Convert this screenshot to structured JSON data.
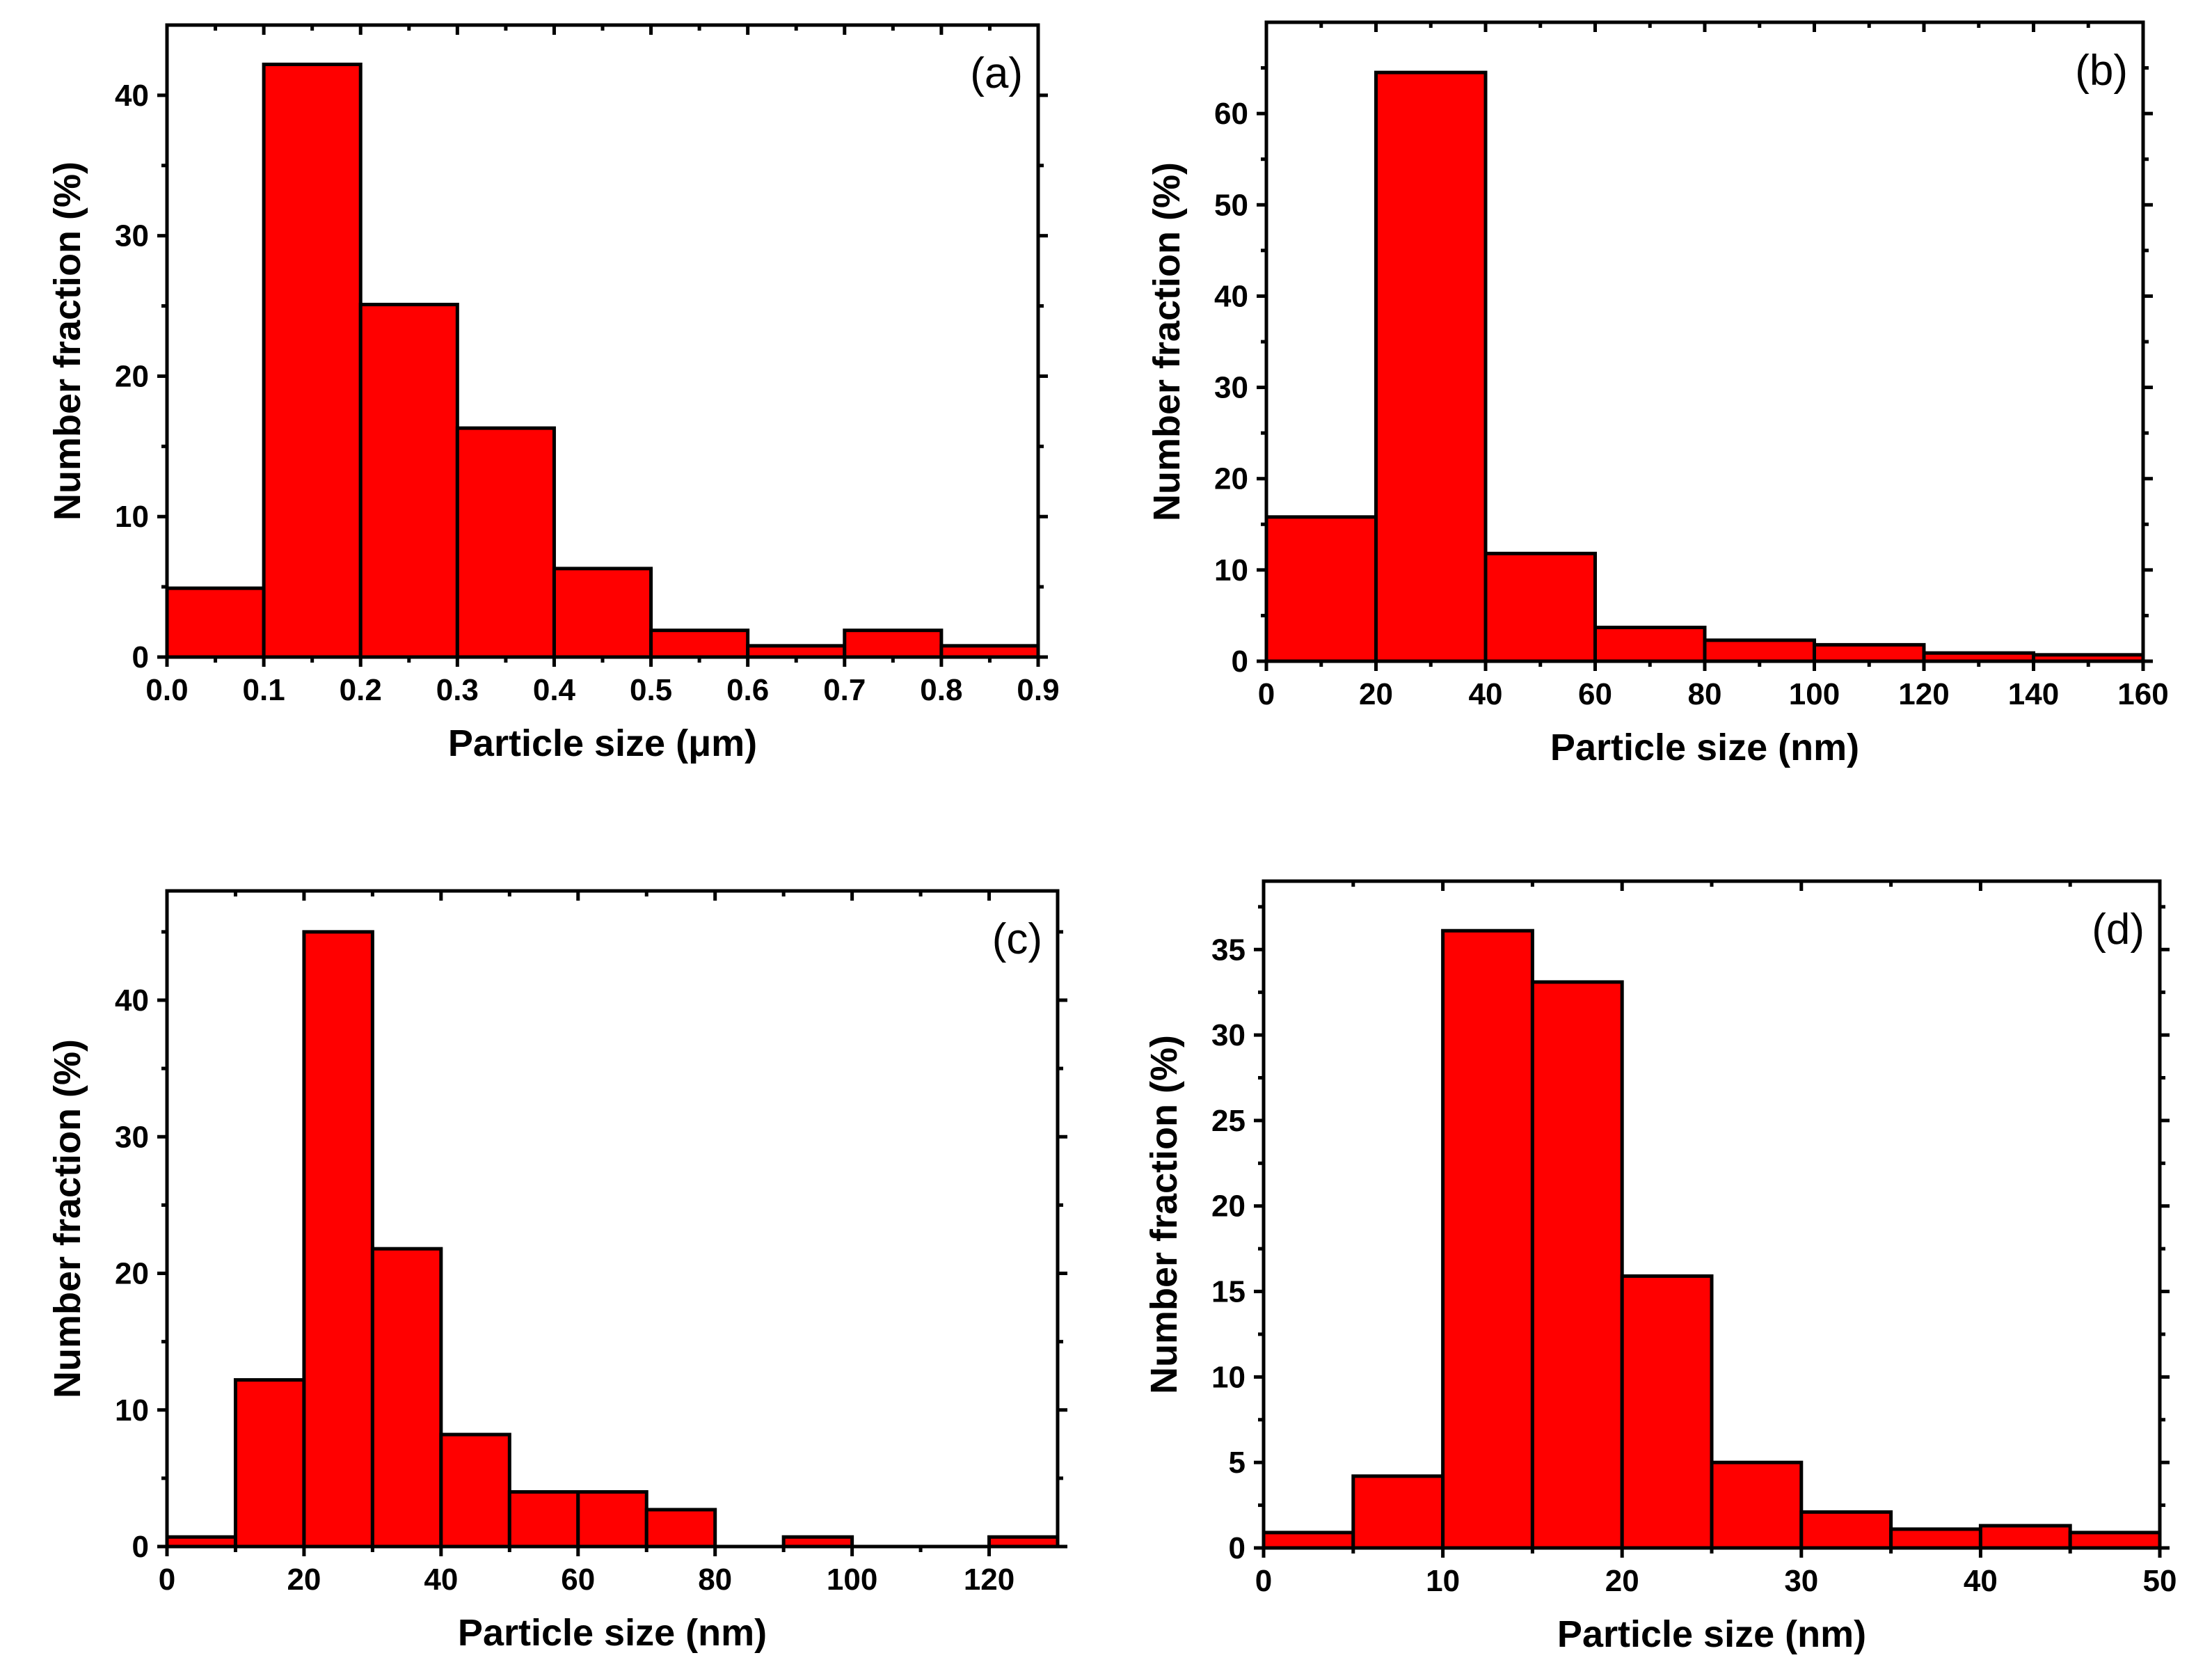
{
  "colors": {
    "bar_fill": "#ff0000",
    "bar_stroke": "#000000",
    "axis": "#000000",
    "background": "#ffffff"
  },
  "chart_data": [
    {
      "type": "bar",
      "panel_label": "(a)",
      "xlabel": "Particle size (μm)",
      "ylabel": "Number fraction (%)",
      "xlim": [
        0,
        0.9
      ],
      "ylim": [
        0,
        45
      ],
      "xticks": [
        0.0,
        0.1,
        0.2,
        0.3,
        0.4,
        0.5,
        0.6,
        0.7,
        0.8,
        0.9
      ],
      "xtick_labels": [
        "0.0",
        "0.1",
        "0.2",
        "0.3",
        "0.4",
        "0.5",
        "0.6",
        "0.7",
        "0.8",
        "0.9"
      ],
      "yticks": [
        0,
        10,
        20,
        30,
        40
      ],
      "ytick_labels": [
        "0",
        "10",
        "20",
        "30",
        "40"
      ],
      "bin_edges": [
        0.0,
        0.1,
        0.2,
        0.3,
        0.4,
        0.5,
        0.6,
        0.7,
        0.8,
        0.9
      ],
      "values": [
        4.9,
        42.2,
        25.1,
        16.3,
        6.3,
        1.9,
        0.8,
        1.9,
        0.8
      ]
    },
    {
      "type": "bar",
      "panel_label": "(b)",
      "xlabel": "Particle size (nm)",
      "ylabel": "Number fraction (%)",
      "xlim": [
        0,
        160
      ],
      "ylim": [
        0,
        70
      ],
      "xticks": [
        0,
        20,
        40,
        60,
        80,
        100,
        120,
        140,
        160
      ],
      "xtick_labels": [
        "0",
        "20",
        "40",
        "60",
        "80",
        "100",
        "120",
        "140",
        "160"
      ],
      "yticks": [
        0,
        10,
        20,
        30,
        40,
        50,
        60
      ],
      "ytick_labels": [
        "0",
        "10",
        "20",
        "30",
        "40",
        "50",
        "60"
      ],
      "bin_edges": [
        0,
        20,
        40,
        60,
        80,
        100,
        120,
        140,
        160
      ],
      "values": [
        15.8,
        64.5,
        11.8,
        3.7,
        2.3,
        1.8,
        0.9,
        0.7
      ]
    },
    {
      "type": "bar",
      "panel_label": "(c)",
      "xlabel": "Particle size (nm)",
      "ylabel": "Number fraction (%)",
      "xlim": [
        0,
        130
      ],
      "ylim": [
        0,
        48
      ],
      "xticks": [
        0,
        20,
        40,
        60,
        80,
        100,
        120
      ],
      "xtick_labels": [
        "0",
        "20",
        "40",
        "60",
        "80",
        "100",
        "120"
      ],
      "yticks": [
        0,
        10,
        20,
        30,
        40
      ],
      "ytick_labels": [
        "0",
        "10",
        "20",
        "30",
        "40"
      ],
      "bin_edges": [
        0,
        10,
        20,
        30,
        40,
        50,
        60,
        70,
        80,
        90,
        100,
        110,
        120,
        130
      ],
      "values": [
        0.7,
        12.2,
        45.0,
        21.8,
        8.2,
        4.0,
        4.0,
        2.7,
        0,
        0.7,
        0,
        0,
        0.7
      ]
    },
    {
      "type": "bar",
      "panel_label": "(d)",
      "xlabel": "Particle size (nm)",
      "ylabel": "Number fraction (%)",
      "xlim": [
        0,
        50
      ],
      "ylim": [
        0,
        39
      ],
      "xticks": [
        0,
        10,
        20,
        30,
        40,
        50
      ],
      "xtick_labels": [
        "0",
        "10",
        "20",
        "30",
        "40",
        "50"
      ],
      "yticks": [
        0,
        5,
        10,
        15,
        20,
        25,
        30,
        35
      ],
      "ytick_labels": [
        "0",
        "5",
        "10",
        "15",
        "20",
        "25",
        "30",
        "35"
      ],
      "bin_edges": [
        0,
        5,
        10,
        15,
        20,
        25,
        30,
        35,
        40,
        45,
        50
      ],
      "values": [
        0.9,
        4.2,
        36.1,
        33.1,
        15.9,
        5.0,
        2.1,
        1.1,
        1.3,
        0.9
      ]
    }
  ]
}
